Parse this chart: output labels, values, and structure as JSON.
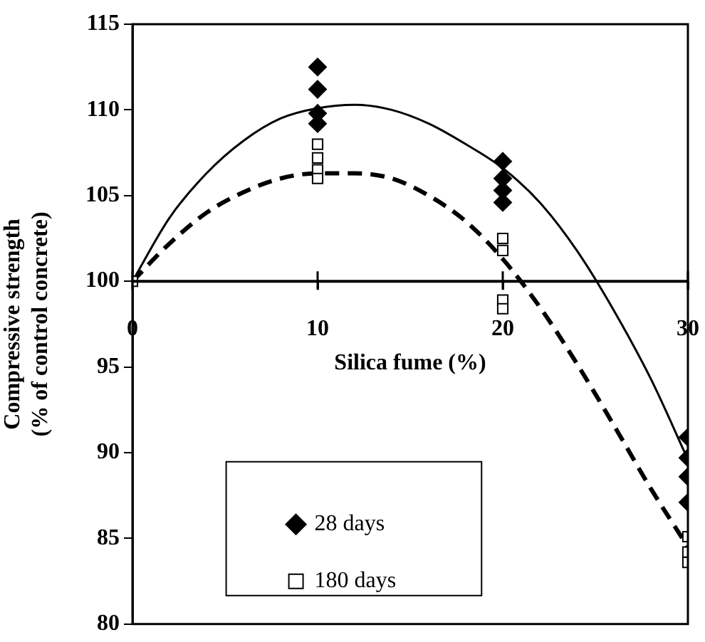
{
  "chart_data": {
    "type": "scatter",
    "xlabel": "Silica fume (%)",
    "ylabel": "Compressive strength\n(% of control concrete)",
    "xlim": [
      0,
      30
    ],
    "xticks": [
      0,
      10,
      20,
      30
    ],
    "ylim": [
      80,
      115
    ],
    "yticks": [
      80,
      85,
      90,
      95,
      100,
      105,
      110,
      115
    ],
    "grid": false,
    "legend": "bottom",
    "series": [
      {
        "name": "28 days",
        "marker": "diamond",
        "color": "#000000",
        "x": [
          10,
          10,
          10,
          10,
          20,
          20,
          20,
          20,
          30,
          30,
          30,
          30
        ],
        "values": [
          112.5,
          111.2,
          109.8,
          109.2,
          107,
          106,
          105.3,
          104.6,
          90.9,
          89.7,
          88.6,
          87.1
        ]
      },
      {
        "name": "180 days",
        "marker": "square",
        "color": "#000000",
        "x": [
          0,
          10,
          10,
          10,
          10,
          20,
          20,
          20,
          20,
          30,
          30,
          30
        ],
        "values": [
          100,
          108,
          107.2,
          106.5,
          106,
          102.5,
          101.8,
          98.9,
          98.4,
          85.1,
          84.2,
          83.6
        ]
      },
      {
        "type": "line",
        "line_style": "solid",
        "color": "#000000",
        "x": [
          0,
          2,
          4,
          6,
          8,
          10,
          12,
          14,
          16,
          18,
          20,
          22,
          24,
          26,
          28,
          30
        ],
        "values": [
          100,
          103.7,
          106.3,
          108.2,
          109.5,
          110.1,
          110.3,
          110,
          109.2,
          108,
          106.6,
          104.6,
          101.8,
          98.3,
          94.3,
          89.6
        ]
      },
      {
        "type": "line",
        "line_style": "dashed",
        "color": "#000000",
        "x": [
          0,
          2,
          4,
          6,
          8,
          10,
          12,
          14,
          16,
          18,
          20,
          22,
          24,
          26,
          28,
          30
        ],
        "values": [
          100,
          102.2,
          104,
          105.2,
          106,
          106.3,
          106.3,
          106,
          105,
          103.5,
          101.3,
          98.5,
          95.2,
          91.6,
          87.9,
          84.5
        ]
      }
    ]
  }
}
